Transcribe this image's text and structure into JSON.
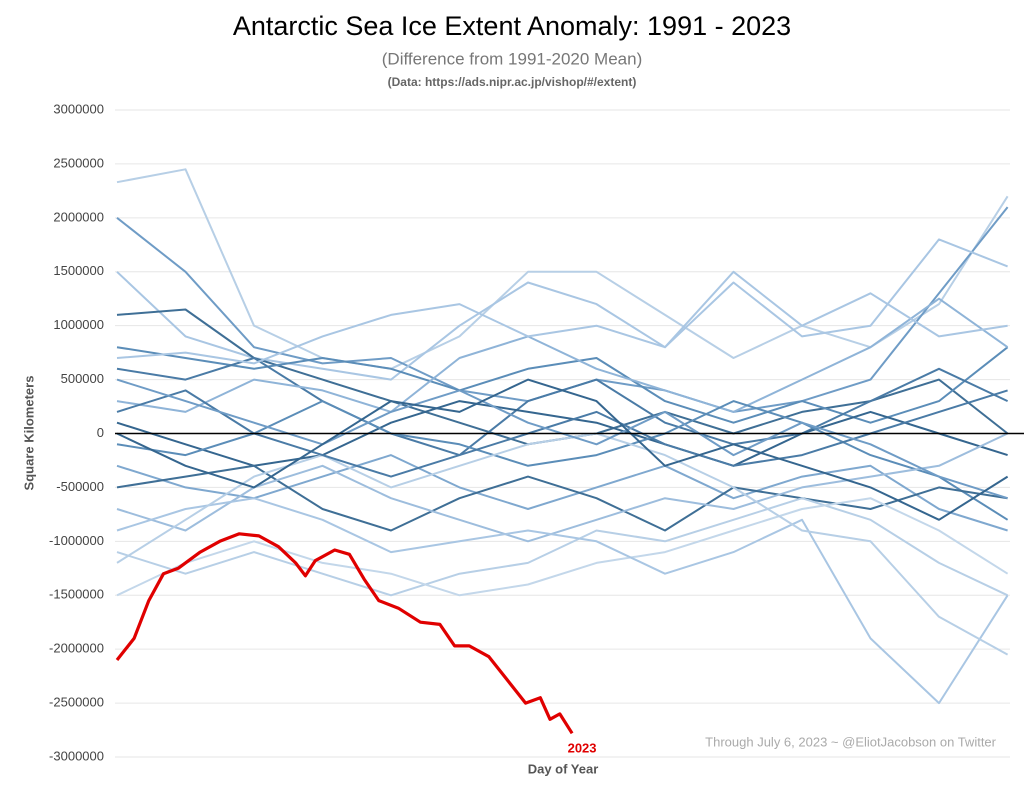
{
  "chart_data": {
    "type": "line",
    "title": "Antarctic Sea Ice Extent Anomaly: 1991 - 2023",
    "subtitle": "(Difference from 1991-2020 Mean)",
    "source": "(Data: https://ads.nipr.ac.jp/vishop/#/extent)",
    "ylabel": "Square Kilometers",
    "xlabel": "Day of Year",
    "annotation": "Through July 6, 2023 ~ @EliotJacobson on Twitter",
    "xlim": [
      1,
      366
    ],
    "ylim": [
      -3000000,
      3000000
    ],
    "yticks": [
      3000000,
      2500000,
      2000000,
      1500000,
      1000000,
      500000,
      0,
      -500000,
      -1000000,
      -1500000,
      -2000000,
      -2500000,
      -3000000
    ],
    "grid": true,
    "x": [
      1,
      29,
      57,
      85,
      113,
      141,
      169,
      197,
      225,
      253,
      281,
      309,
      337,
      365
    ],
    "series": [
      {
        "color": "#b7cfe6",
        "values": [
          2330000,
          2450000,
          1000000,
          700000,
          600000,
          900000,
          1500000,
          1500000,
          1100000,
          700000,
          1000000,
          800000,
          1200000,
          2200000
        ]
      },
      {
        "color": "#6f9cc6",
        "values": [
          2000000,
          1500000,
          800000,
          650000,
          700000,
          400000,
          300000,
          500000,
          400000,
          200000,
          300000,
          500000,
          1300000,
          2100000
        ]
      },
      {
        "color": "#a9c6e3",
        "values": [
          1500000,
          900000,
          700000,
          600000,
          500000,
          1000000,
          1400000,
          1200000,
          800000,
          1400000,
          900000,
          1000000,
          1800000,
          1550000
        ]
      },
      {
        "color": "#3f6f96",
        "values": [
          1100000,
          1150000,
          700000,
          500000,
          300000,
          100000,
          -100000,
          0,
          200000,
          0,
          200000,
          300000,
          500000,
          0
        ]
      },
      {
        "color": "#5b8db8",
        "values": [
          800000,
          700000,
          600000,
          700000,
          600000,
          400000,
          600000,
          700000,
          300000,
          100000,
          300000,
          100000,
          300000,
          800000
        ]
      },
      {
        "color": "#4a7ba6",
        "values": [
          600000,
          500000,
          700000,
          300000,
          0,
          -200000,
          300000,
          500000,
          100000,
          -100000,
          0,
          300000,
          600000,
          300000
        ]
      },
      {
        "color": "#8fb4d8",
        "values": [
          300000,
          200000,
          500000,
          400000,
          200000,
          700000,
          900000,
          600000,
          400000,
          200000,
          500000,
          800000,
          1250000,
          800000
        ]
      },
      {
        "color": "#35668f",
        "values": [
          100000,
          -100000,
          -300000,
          -200000,
          100000,
          300000,
          200000,
          100000,
          -100000,
          -300000,
          0,
          200000,
          0,
          -200000
        ]
      },
      {
        "color": "#5b8db8",
        "values": [
          -100000,
          -200000,
          0,
          300000,
          0,
          -100000,
          -300000,
          -200000,
          0,
          300000,
          100000,
          -200000,
          -400000,
          -800000
        ]
      },
      {
        "color": "#7fa8cf",
        "values": [
          -300000,
          -500000,
          -600000,
          -400000,
          -200000,
          -500000,
          -700000,
          -500000,
          -300000,
          -600000,
          -400000,
          -300000,
          -700000,
          -900000
        ]
      },
      {
        "color": "#3f6f96",
        "values": [
          -500000,
          -400000,
          -300000,
          -700000,
          -900000,
          -600000,
          -400000,
          -600000,
          -900000,
          -500000,
          -600000,
          -700000,
          -500000,
          -600000
        ]
      },
      {
        "color": "#9dbddd",
        "values": [
          -700000,
          -900000,
          -500000,
          -300000,
          -600000,
          -800000,
          -1000000,
          -800000,
          -600000,
          -700000,
          -500000,
          -400000,
          -300000,
          0
        ]
      },
      {
        "color": "#b7cfe6",
        "values": [
          -1100000,
          -1300000,
          -1100000,
          -1300000,
          -1500000,
          -1300000,
          -1200000,
          -900000,
          -1000000,
          -800000,
          -600000,
          -800000,
          -1200000,
          -1500000
        ]
      },
      {
        "color": "#c3d7ea",
        "values": [
          -1500000,
          -1200000,
          -1000000,
          -1200000,
          -1300000,
          -1500000,
          -1400000,
          -1200000,
          -1100000,
          -900000,
          -700000,
          -600000,
          -900000,
          -1300000
        ]
      },
      {
        "color": "#a9c6e3",
        "values": [
          -900000,
          -700000,
          -600000,
          -800000,
          -1100000,
          -1000000,
          -900000,
          -1000000,
          -1300000,
          -1100000,
          -800000,
          -1900000,
          -2500000,
          -1500000
        ]
      },
      {
        "color": "#b7cfe6",
        "values": [
          -1200000,
          -800000,
          -400000,
          -200000,
          -500000,
          -300000,
          -100000,
          0,
          -200000,
          -500000,
          -900000,
          -1000000,
          -1700000,
          -2050000
        ]
      },
      {
        "color": "#4a7ba6",
        "values": [
          200000,
          400000,
          0,
          -200000,
          -400000,
          -200000,
          0,
          200000,
          -100000,
          -300000,
          -200000,
          0,
          200000,
          400000
        ]
      },
      {
        "color": "#6f9cc6",
        "values": [
          500000,
          300000,
          100000,
          -100000,
          200000,
          400000,
          100000,
          -100000,
          200000,
          -200000,
          100000,
          -100000,
          -400000,
          -600000
        ]
      },
      {
        "color": "#35668f",
        "values": [
          0,
          -300000,
          -500000,
          -100000,
          300000,
          200000,
          500000,
          300000,
          -300000,
          -100000,
          -300000,
          -500000,
          -800000,
          -400000
        ]
      },
      {
        "color": "#a9c6e3",
        "values": [
          700000,
          750000,
          650000,
          900000,
          1100000,
          1200000,
          900000,
          1000000,
          800000,
          1500000,
          1000000,
          1300000,
          900000,
          1000000
        ]
      },
      {
        "name": "2023",
        "color": "#e00000",
        "x": [
          1,
          8,
          14,
          20,
          26,
          35,
          43,
          51,
          59,
          67,
          74,
          78,
          82,
          90,
          96,
          102,
          108,
          116,
          125,
          133,
          139,
          145,
          153,
          161,
          168,
          174,
          178,
          182,
          187
        ],
        "values": [
          -2100000,
          -1900000,
          -1550000,
          -1300000,
          -1250000,
          -1100000,
          -1000000,
          -930000,
          -950000,
          -1050000,
          -1200000,
          -1320000,
          -1180000,
          -1080000,
          -1120000,
          -1350000,
          -1550000,
          -1620000,
          -1750000,
          -1770000,
          -1970000,
          -1970000,
          -2070000,
          -2300000,
          -2500000,
          -2450000,
          -2650000,
          -2600000,
          -2780000
        ]
      }
    ]
  }
}
